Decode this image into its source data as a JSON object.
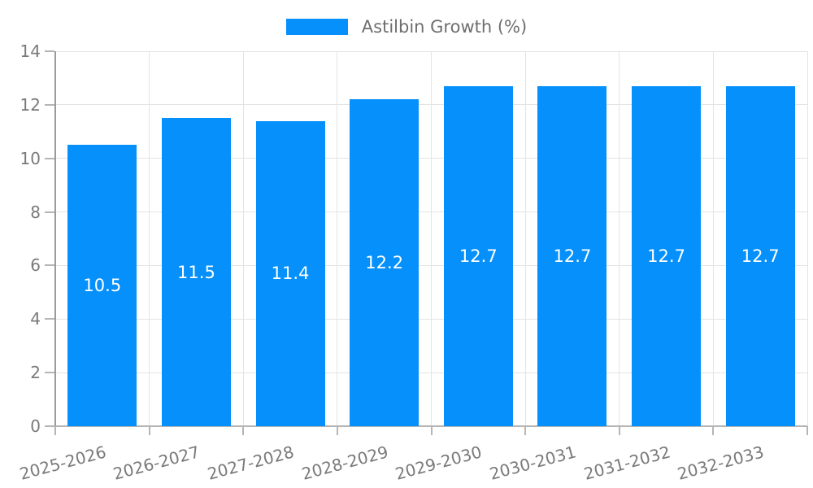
{
  "chart_data": {
    "type": "bar",
    "categories": [
      "2025-2026",
      "2026-2027",
      "2027-2028",
      "2028-2029",
      "2029-2030",
      "2030-2031",
      "2031-2032",
      "2032-2033"
    ],
    "series": [
      {
        "name": "Astilbin Growth (%)",
        "values": [
          10.5,
          11.5,
          11.4,
          12.2,
          12.7,
          12.7,
          12.7,
          12.7
        ]
      }
    ],
    "value_labels": [
      "10.5",
      "11.5",
      "11.4",
      "12.2",
      "12.7",
      "12.7",
      "12.7",
      "12.7"
    ],
    "y_ticks": [
      "0",
      "2",
      "4",
      "6",
      "8",
      "10",
      "12",
      "14"
    ],
    "ylim": [
      0,
      14
    ],
    "ytick_step": 2,
    "grid": true,
    "legend_position": "top-center",
    "bar_label_position": "center",
    "colors": {
      "bar": "#0590fb",
      "grid": "#e4e4e4",
      "left_spine": "#9a9a9a",
      "bottom_spine": "#b5b5b5",
      "tick": "#b5b5b5",
      "tick_label": "#7a7a7a",
      "bar_label": "#ffffff",
      "legend_text": "#6e6e6e"
    }
  }
}
